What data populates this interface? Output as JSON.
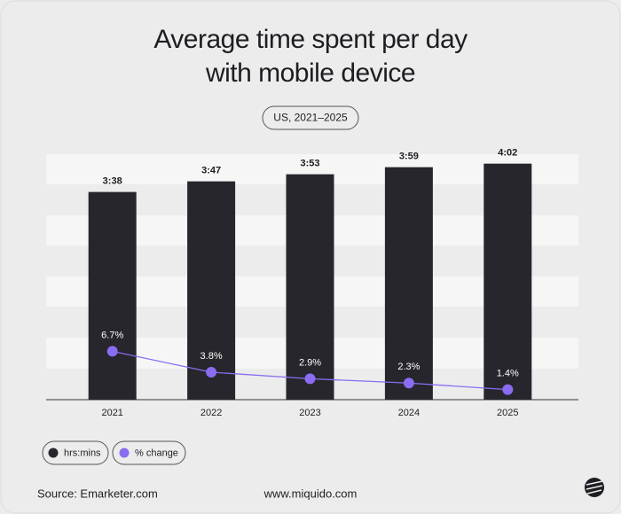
{
  "chart_data": {
    "type": "bar",
    "title": "Average time spent per day with mobile device",
    "subtitle": "US, 2021–2025",
    "categories": [
      "2021",
      "2022",
      "2023",
      "2024",
      "2025"
    ],
    "series": [
      {
        "name": "hrs:mins",
        "type": "bar",
        "color": "#26262c",
        "values": [
          218,
          227,
          233,
          239,
          242
        ],
        "value_labels": [
          "3:38",
          "3:47",
          "3:53",
          "3:59",
          "4:02"
        ]
      },
      {
        "name": "% change",
        "type": "line",
        "axis": "y2",
        "color": "#8a6cf2",
        "values": [
          6.7,
          3.8,
          2.9,
          2.3,
          1.4
        ],
        "value_labels": [
          "6.7%",
          "3.8%",
          "2.9%",
          "2.3%",
          "1.4%"
        ]
      }
    ],
    "ylim": [
      42,
      250
    ],
    "y2lim": [
      0,
      34
    ],
    "source": "Source: Emarketer.com",
    "website": "www.miquido.com"
  }
}
